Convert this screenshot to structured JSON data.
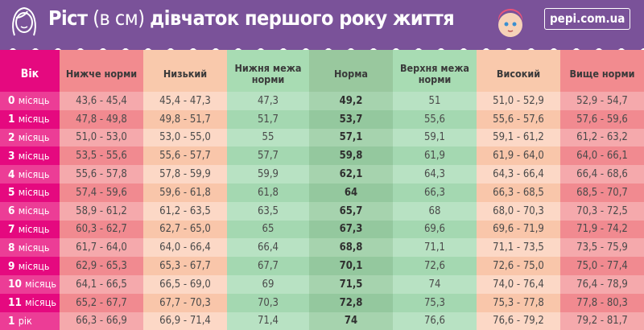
{
  "header": {
    "title_bold_1": "Ріст",
    "title_thin": " (в см) ",
    "title_bold_2": "дівчаток першого року життя",
    "site": "pepi.com.ua",
    "icons": [
      "girl-face-icon",
      "baby-face-logo"
    ]
  },
  "colors": {
    "purple": "#7a5299",
    "age": "#e5097f",
    "below": "#f28b8f",
    "low": "#f9c9ac",
    "normal_edge": "#a8dcb3",
    "norm": "#99c89e"
  },
  "columns": [
    "Вік",
    "Нижче норми",
    "Низький",
    "Нижня межа норми",
    "Норма",
    "Верхня межа норми",
    "Високий",
    "Вище норми"
  ],
  "rows": [
    {
      "n": "0",
      "u": "місяць",
      "v": [
        "43,6 - 45,4",
        "45,4 - 47,3",
        "47,3",
        "49,2",
        "51",
        "51,0 - 52,9",
        "52,9 - 54,7"
      ]
    },
    {
      "n": "1",
      "u": "місяць",
      "v": [
        "47,8 - 49,8",
        "49,8 - 51,7",
        "51,7",
        "53,7",
        "55,6",
        "55,6 - 57,6",
        "57,6 - 59,6"
      ]
    },
    {
      "n": "2",
      "u": "місяць",
      "v": [
        "51,0 - 53,0",
        "53,0 - 55,0",
        "55",
        "57,1",
        "59,1",
        "59,1 - 61,2",
        "61,2 - 63,2"
      ]
    },
    {
      "n": "3",
      "u": "місяць",
      "v": [
        "53,5 - 55,6",
        "55,6 - 57,7",
        "57,7",
        "59,8",
        "61,9",
        "61,9 - 64,0",
        "64,0 - 66,1"
      ]
    },
    {
      "n": "4",
      "u": "місяць",
      "v": [
        "55,6 - 57,8",
        "57,8 - 59,9",
        "59,9",
        "62,1",
        "64,3",
        "64,3 - 66,4",
        "66,4 - 68,6"
      ]
    },
    {
      "n": "5",
      "u": "місяць",
      "v": [
        "57,4 - 59,6",
        "59,6 - 61,8",
        "61,8",
        "64",
        "66,3",
        "66,3 - 68,5",
        "68,5 - 70,7"
      ]
    },
    {
      "n": "6",
      "u": "місяць",
      "v": [
        "58,9 - 61,2",
        "61,2 - 63,5",
        "63,5",
        "65,7",
        "68",
        "68,0 - 70,3",
        "70,3 - 72,5"
      ]
    },
    {
      "n": "7",
      "u": "місяць",
      "v": [
        "60,3 - 62,7",
        "62,7 - 65,0",
        "65",
        "67,3",
        "69,6",
        "69,6 - 71,9",
        "71,9 - 74,2"
      ]
    },
    {
      "n": "8",
      "u": "місяць",
      "v": [
        "61,7 - 64,0",
        "64,0 - 66,4",
        "66,4",
        "68,8",
        "71,1",
        "71,1 - 73,5",
        "73,5 - 75,9"
      ]
    },
    {
      "n": "9",
      "u": "місяць",
      "v": [
        "62,9 - 65,3",
        "65,3 - 67,7",
        "67,7",
        "70,1",
        "72,6",
        "72,6 - 75,0",
        "75,0 - 77,4"
      ]
    },
    {
      "n": "10",
      "u": "місяць",
      "v": [
        "64,1 - 66,5",
        "66,5 - 69,0",
        "69",
        "71,5",
        "74",
        "74,0 - 76,4",
        "76,4 - 78,9"
      ]
    },
    {
      "n": "11",
      "u": "місяць",
      "v": [
        "65,2 - 67,7",
        "67,7 - 70,3",
        "70,3",
        "72,8",
        "75,3",
        "75,3 - 77,8",
        "77,8 - 80,3"
      ]
    },
    {
      "n": "1",
      "u": "рік",
      "v": [
        "66,3 - 66,9",
        "66,9 - 71,4",
        "71,4",
        "74",
        "76,6",
        "76,6 - 79,2",
        "79,2 - 81,7"
      ]
    }
  ]
}
